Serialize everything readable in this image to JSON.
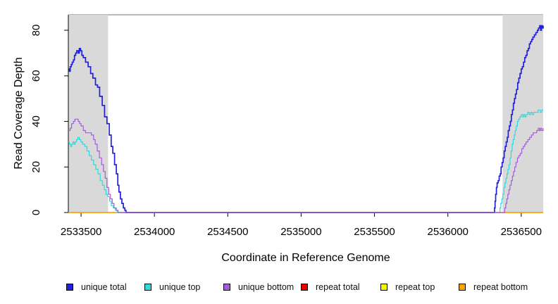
{
  "figure": {
    "background": "#ffffff",
    "band_color": "#D9D9D9",
    "border_color": "#8F8F8F",
    "axis_color": "#1A1A1A"
  },
  "chart_data": {
    "type": "line",
    "title": "",
    "xlabel": "Coordinate in Reference Genome",
    "ylabel": "Read Coverage Depth",
    "xlim": [
      2533413,
      2536650
    ],
    "ylim": [
      0,
      86.8
    ],
    "x_ticks": [
      2533500,
      2534000,
      2534500,
      2535000,
      2535500,
      2536000,
      2536500
    ],
    "y_ticks": [
      0,
      20,
      40,
      60,
      80
    ],
    "grid": false,
    "legend_position": "bottom",
    "shaded_regions": [
      {
        "x0": 2533413,
        "x1": 2533684,
        "color": "#D9D9D9"
      },
      {
        "x0": 2536373,
        "x1": 2536650,
        "color": "#D9D9D9"
      }
    ],
    "series": [
      {
        "name": "unique total",
        "color": "#2121D9",
        "width": 1.7,
        "z": 4,
        "points": [
          [
            2533413,
            63
          ],
          [
            2533420,
            62
          ],
          [
            2533426,
            64
          ],
          [
            2533433,
            65
          ],
          [
            2533440,
            66
          ],
          [
            2533448,
            67
          ],
          [
            2533455,
            69
          ],
          [
            2533463,
            70
          ],
          [
            2533470,
            71
          ],
          [
            2533480,
            70
          ],
          [
            2533488,
            72
          ],
          [
            2533496,
            71
          ],
          [
            2533505,
            69
          ],
          [
            2533515,
            68
          ],
          [
            2533530,
            66
          ],
          [
            2533548,
            64
          ],
          [
            2533565,
            61
          ],
          [
            2533580,
            59
          ],
          [
            2533598,
            56
          ],
          [
            2533612,
            55
          ],
          [
            2533626,
            51
          ],
          [
            2533644,
            47
          ],
          [
            2533660,
            42
          ],
          [
            2533676,
            39
          ],
          [
            2533692,
            34
          ],
          [
            2533705,
            29
          ],
          [
            2533716,
            26
          ],
          [
            2533728,
            21
          ],
          [
            2533740,
            17
          ],
          [
            2533750,
            12
          ],
          [
            2533758,
            9
          ],
          [
            2533768,
            6
          ],
          [
            2533778,
            4
          ],
          [
            2533788,
            2
          ],
          [
            2533798,
            1
          ],
          [
            2533806,
            0
          ],
          [
            2536312,
            0
          ],
          [
            2536318,
            2
          ],
          [
            2536322,
            5
          ],
          [
            2536326,
            8
          ],
          [
            2536331,
            11
          ],
          [
            2536336,
            13
          ],
          [
            2536343,
            14
          ],
          [
            2536350,
            16
          ],
          [
            2536357,
            17
          ],
          [
            2536363,
            20
          ],
          [
            2536370,
            22
          ],
          [
            2536377,
            24
          ],
          [
            2536384,
            27
          ],
          [
            2536391,
            29
          ],
          [
            2536398,
            31
          ],
          [
            2536405,
            33
          ],
          [
            2536412,
            36
          ],
          [
            2536419,
            38
          ],
          [
            2536426,
            40
          ],
          [
            2536433,
            43
          ],
          [
            2536440,
            45
          ],
          [
            2536447,
            48
          ],
          [
            2536454,
            50
          ],
          [
            2536461,
            52
          ],
          [
            2536468,
            54
          ],
          [
            2536476,
            57
          ],
          [
            2536484,
            59
          ],
          [
            2536492,
            61
          ],
          [
            2536500,
            63
          ],
          [
            2536508,
            64
          ],
          [
            2536516,
            66
          ],
          [
            2536524,
            68
          ],
          [
            2536532,
            69
          ],
          [
            2536540,
            71
          ],
          [
            2536548,
            72
          ],
          [
            2536556,
            74
          ],
          [
            2536564,
            75
          ],
          [
            2536572,
            76
          ],
          [
            2536580,
            77
          ],
          [
            2536590,
            78
          ],
          [
            2536600,
            79
          ],
          [
            2536610,
            80
          ],
          [
            2536618,
            81
          ],
          [
            2536626,
            82
          ],
          [
            2536632,
            80
          ],
          [
            2536638,
            82
          ],
          [
            2536644,
            81
          ],
          [
            2536650,
            82
          ]
        ]
      },
      {
        "name": "unique top",
        "color": "#2FD9DF",
        "width": 1.2,
        "z": 3,
        "points": [
          [
            2533413,
            31
          ],
          [
            2533420,
            30
          ],
          [
            2533428,
            29
          ],
          [
            2533436,
            30
          ],
          [
            2533444,
            31
          ],
          [
            2533452,
            30
          ],
          [
            2533460,
            31
          ],
          [
            2533468,
            32
          ],
          [
            2533478,
            33
          ],
          [
            2533488,
            32
          ],
          [
            2533498,
            31
          ],
          [
            2533510,
            30
          ],
          [
            2533525,
            29
          ],
          [
            2533540,
            27
          ],
          [
            2533555,
            25
          ],
          [
            2533570,
            23
          ],
          [
            2533585,
            21
          ],
          [
            2533600,
            19
          ],
          [
            2533615,
            17
          ],
          [
            2533630,
            14
          ],
          [
            2533645,
            12
          ],
          [
            2533658,
            10
          ],
          [
            2533670,
            8
          ],
          [
            2533682,
            7
          ],
          [
            2533694,
            5
          ],
          [
            2533706,
            3
          ],
          [
            2533720,
            2
          ],
          [
            2533734,
            1
          ],
          [
            2533746,
            0
          ],
          [
            2536349,
            0
          ],
          [
            2536355,
            2
          ],
          [
            2536361,
            4
          ],
          [
            2536368,
            6
          ],
          [
            2536375,
            8
          ],
          [
            2536382,
            11
          ],
          [
            2536389,
            13
          ],
          [
            2536396,
            15
          ],
          [
            2536403,
            17
          ],
          [
            2536410,
            19
          ],
          [
            2536417,
            21
          ],
          [
            2536424,
            24
          ],
          [
            2536431,
            27
          ],
          [
            2536438,
            30
          ],
          [
            2536445,
            32
          ],
          [
            2536452,
            34
          ],
          [
            2536459,
            36
          ],
          [
            2536466,
            38
          ],
          [
            2536474,
            40
          ],
          [
            2536482,
            41
          ],
          [
            2536490,
            42
          ],
          [
            2536500,
            43
          ],
          [
            2536510,
            42
          ],
          [
            2536518,
            43
          ],
          [
            2536526,
            42
          ],
          [
            2536534,
            43
          ],
          [
            2536545,
            44
          ],
          [
            2536555,
            43
          ],
          [
            2536565,
            44
          ],
          [
            2536575,
            43
          ],
          [
            2536585,
            44
          ],
          [
            2536600,
            44
          ],
          [
            2536615,
            45
          ],
          [
            2536630,
            44
          ],
          [
            2536640,
            45
          ],
          [
            2536650,
            45
          ]
        ]
      },
      {
        "name": "unique bottom",
        "color": "#A65CD9",
        "width": 1.2,
        "z": 5,
        "points": [
          [
            2533413,
            36
          ],
          [
            2533425,
            37
          ],
          [
            2533435,
            39
          ],
          [
            2533448,
            40
          ],
          [
            2533458,
            41
          ],
          [
            2533470,
            41
          ],
          [
            2533480,
            40
          ],
          [
            2533490,
            39
          ],
          [
            2533500,
            38
          ],
          [
            2533515,
            36
          ],
          [
            2533530,
            35
          ],
          [
            2533550,
            35
          ],
          [
            2533570,
            34
          ],
          [
            2533585,
            32
          ],
          [
            2533596,
            30
          ],
          [
            2533610,
            27
          ],
          [
            2533625,
            24
          ],
          [
            2533640,
            21
          ],
          [
            2533652,
            18
          ],
          [
            2533664,
            15
          ],
          [
            2533676,
            11
          ],
          [
            2533688,
            8
          ],
          [
            2533700,
            6
          ],
          [
            2533712,
            4
          ],
          [
            2533724,
            2
          ],
          [
            2533740,
            1
          ],
          [
            2533752,
            0
          ],
          [
            2536381,
            0
          ],
          [
            2536388,
            2
          ],
          [
            2536395,
            4
          ],
          [
            2536402,
            6
          ],
          [
            2536409,
            8
          ],
          [
            2536416,
            10
          ],
          [
            2536424,
            12
          ],
          [
            2536432,
            14
          ],
          [
            2536440,
            16
          ],
          [
            2536448,
            18
          ],
          [
            2536456,
            20
          ],
          [
            2536464,
            22
          ],
          [
            2536474,
            24
          ],
          [
            2536484,
            25
          ],
          [
            2536494,
            26
          ],
          [
            2536504,
            28
          ],
          [
            2536514,
            29
          ],
          [
            2536524,
            30
          ],
          [
            2536534,
            31
          ],
          [
            2536546,
            32
          ],
          [
            2536558,
            33
          ],
          [
            2536570,
            34
          ],
          [
            2536582,
            35
          ],
          [
            2536594,
            35
          ],
          [
            2536606,
            36
          ],
          [
            2536616,
            37
          ],
          [
            2536624,
            36
          ],
          [
            2536632,
            37
          ],
          [
            2536640,
            36
          ],
          [
            2536650,
            37
          ]
        ]
      },
      {
        "name": "repeat total",
        "color": "#E60000",
        "width": 1.3,
        "z": 0,
        "points": [
          [
            2533413,
            0
          ],
          [
            2536650,
            0
          ]
        ]
      },
      {
        "name": "repeat top",
        "color": "#F5F500",
        "width": 1.3,
        "z": 1,
        "points": [
          [
            2533413,
            0
          ],
          [
            2536650,
            0
          ]
        ]
      },
      {
        "name": "repeat bottom",
        "color": "#FFA200",
        "width": 1.5,
        "z": 2,
        "points": [
          [
            2533413,
            0
          ],
          [
            2536650,
            0
          ]
        ]
      }
    ]
  },
  "legend": {
    "items": [
      {
        "label": "unique total",
        "color": "#2121D9"
      },
      {
        "label": "unique top",
        "color": "#2FD9DF"
      },
      {
        "label": "unique bottom",
        "color": "#A65CD9"
      },
      {
        "label": "repeat total",
        "color": "#E60000"
      },
      {
        "label": "repeat top",
        "color": "#F5F500"
      },
      {
        "label": "repeat bottom",
        "color": "#FFA200"
      }
    ]
  }
}
